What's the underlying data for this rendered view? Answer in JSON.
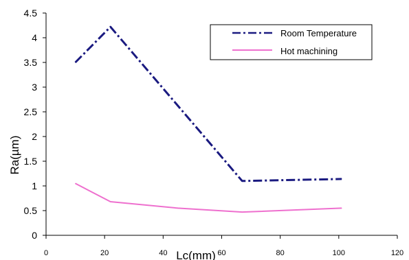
{
  "chart_data": {
    "type": "line",
    "xlabel": "Lc(mm)",
    "ylabel": "Ra(µm)",
    "xlim": [
      0,
      120
    ],
    "ylim": [
      0,
      4.5
    ],
    "x_ticks": [
      "0",
      "20",
      "40",
      "60",
      "80",
      "100",
      "120"
    ],
    "y_ticks": [
      "0",
      "0.5",
      "1",
      "1.5",
      "2",
      "2.5",
      "3",
      "3.5",
      "4",
      "4.5"
    ],
    "grid": false,
    "legend_position": "top-right",
    "series": [
      {
        "name": "Room Temperature",
        "color": "#1a1a80",
        "line_style": "dash-dot",
        "x": [
          10,
          22,
          67,
          101
        ],
        "y": [
          3.5,
          4.22,
          1.1,
          1.14
        ]
      },
      {
        "name": "Hot machining",
        "color": "#ee6fce",
        "line_style": "solid",
        "x": [
          10,
          22,
          45,
          67,
          101
        ],
        "y": [
          1.05,
          0.68,
          0.55,
          0.47,
          0.55
        ]
      }
    ]
  }
}
